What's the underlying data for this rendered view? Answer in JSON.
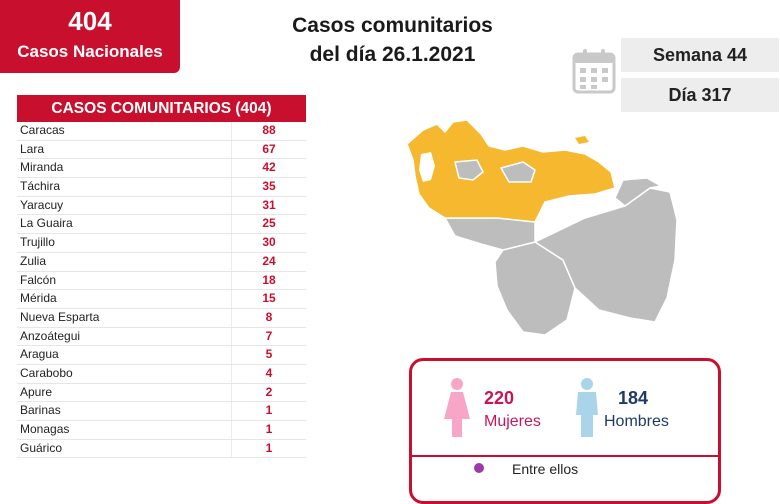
{
  "national": {
    "count": "404",
    "label": "Casos Nacionales"
  },
  "title": {
    "line1": "Casos comunitarios",
    "line2": "del día 26.1.2021"
  },
  "week": {
    "semana": "Semana 44",
    "dia": "Día 317"
  },
  "table": {
    "header": "CASOS COMUNITARIOS (404)",
    "rows": [
      {
        "state": "Caracas",
        "count": "88"
      },
      {
        "state": "Lara",
        "count": "67"
      },
      {
        "state": "Miranda",
        "count": "42"
      },
      {
        "state": "Táchira",
        "count": "35"
      },
      {
        "state": "Yaracuy",
        "count": "31"
      },
      {
        "state": "La Guaira",
        "count": "25"
      },
      {
        "state": "Trujillo",
        "count": "30"
      },
      {
        "state": "Zulia",
        "count": "24"
      },
      {
        "state": "Falcón",
        "count": "18"
      },
      {
        "state": "Mérida",
        "count": "15"
      },
      {
        "state": "Nueva Esparta",
        "count": "8"
      },
      {
        "state": "Anzoátegui",
        "count": "7"
      },
      {
        "state": "Aragua",
        "count": "5"
      },
      {
        "state": "Carabobo",
        "count": "4"
      },
      {
        "state": "Apure",
        "count": "2"
      },
      {
        "state": "Barinas",
        "count": "1"
      },
      {
        "state": "Monagas",
        "count": "1"
      },
      {
        "state": "Guárico",
        "count": "1"
      }
    ]
  },
  "gender": {
    "mujeres_count": "220",
    "mujeres_label": "Mujeres",
    "hombres_count": "184",
    "hombres_label": "Hombres",
    "entre": "Entre ellos"
  },
  "colors": {
    "accent": "#c8102e",
    "map_active": "#f5b82e",
    "map_inactive": "#bdbdbd",
    "female": "#f7a6c7",
    "male": "#a9d4ea"
  },
  "icons": {
    "calendar": "calendar-icon",
    "female": "female-person-icon",
    "male": "male-person-icon"
  }
}
